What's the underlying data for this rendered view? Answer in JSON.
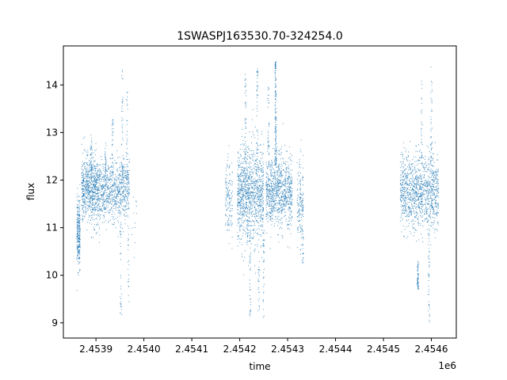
{
  "chart_data": {
    "type": "scatter",
    "title": "1SWASPJ163530.70-324254.0",
    "xlabel": "time",
    "ylabel": "flux",
    "x_offset_label": "1e6",
    "xlim": [
      2453832,
      2454652
    ],
    "ylim": [
      8.68,
      14.82
    ],
    "xticks": [
      2453900,
      2454000,
      2454100,
      2454200,
      2454300,
      2454400,
      2454500,
      2454600
    ],
    "xtick_labels": [
      "2.4539",
      "2.4540",
      "2.4541",
      "2.4542",
      "2.4543",
      "2.4544",
      "2.4545",
      "2.4546"
    ],
    "yticks": [
      9,
      10,
      11,
      12,
      13,
      14
    ],
    "ytick_labels": [
      "9",
      "10",
      "11",
      "12",
      "13",
      "14"
    ],
    "grid": false,
    "marker_color": "#1f77b4",
    "segments": [
      {
        "x_start": 2453860,
        "x_end": 2453867,
        "center": 10.9,
        "spread": 0.35,
        "count": 260
      },
      {
        "x_start": 2453870,
        "x_end": 2453905,
        "center": 11.8,
        "spread": 0.35,
        "count": 700
      },
      {
        "x_start": 2453905,
        "x_end": 2453970,
        "center": 11.75,
        "spread": 0.32,
        "count": 820
      },
      {
        "x_start": 2453975,
        "x_end": 2453985,
        "center": 11.05,
        "spread": 0.5,
        "count": 12
      },
      {
        "x_start": 2454170,
        "x_end": 2454185,
        "center": 11.6,
        "spread": 0.45,
        "count": 140
      },
      {
        "x_start": 2454195,
        "x_end": 2454250,
        "center": 11.7,
        "spread": 0.5,
        "count": 1100
      },
      {
        "x_start": 2454255,
        "x_end": 2454310,
        "center": 11.75,
        "spread": 0.38,
        "count": 900
      },
      {
        "x_start": 2454320,
        "x_end": 2454333,
        "center": 11.5,
        "spread": 0.45,
        "count": 160
      },
      {
        "x_start": 2454535,
        "x_end": 2454545,
        "center": 11.75,
        "spread": 0.4,
        "count": 150
      },
      {
        "x_start": 2454545,
        "x_end": 2454615,
        "center": 11.75,
        "spread": 0.38,
        "count": 1000
      }
    ],
    "excursions": [
      {
        "x": 2453890,
        "y_low": 12.0,
        "y_high": 13.0,
        "count": 40
      },
      {
        "x": 2453920,
        "y_low": 12.0,
        "y_high": 12.8,
        "count": 30
      },
      {
        "x": 2453935,
        "y_low": 12.0,
        "y_high": 13.3,
        "count": 35
      },
      {
        "x": 2453955,
        "y_low": 12.0,
        "y_high": 14.4,
        "count": 45
      },
      {
        "x": 2453965,
        "y_low": 12.0,
        "y_high": 14.0,
        "count": 30
      },
      {
        "x": 2453952,
        "y_low": 9.0,
        "y_high": 11.0,
        "count": 30
      },
      {
        "x": 2453968,
        "y_low": 9.3,
        "y_high": 11.0,
        "count": 20
      },
      {
        "x": 2454212,
        "y_low": 12.3,
        "y_high": 14.4,
        "count": 45
      },
      {
        "x": 2454222,
        "y_low": 9.0,
        "y_high": 11.0,
        "count": 40
      },
      {
        "x": 2454237,
        "y_low": 12.3,
        "y_high": 14.4,
        "count": 50
      },
      {
        "x": 2454260,
        "y_low": 12.3,
        "y_high": 14.0,
        "count": 40
      },
      {
        "x": 2454275,
        "y_low": 12.3,
        "y_high": 14.5,
        "count": 150
      },
      {
        "x": 2454250,
        "y_low": 9.0,
        "y_high": 11.0,
        "count": 35
      },
      {
        "x": 2454240,
        "y_low": 9.1,
        "y_high": 10.5,
        "count": 25
      },
      {
        "x": 2454332,
        "y_low": 10.2,
        "y_high": 11.0,
        "count": 20
      },
      {
        "x": 2454580,
        "y_low": 12.3,
        "y_high": 14.2,
        "count": 30
      },
      {
        "x": 2454600,
        "y_low": 12.3,
        "y_high": 14.4,
        "count": 40
      },
      {
        "x": 2454595,
        "y_low": 9.0,
        "y_high": 11.0,
        "count": 45
      },
      {
        "x": 2454572,
        "y_low": 9.7,
        "y_high": 10.3,
        "count": 60
      }
    ]
  }
}
